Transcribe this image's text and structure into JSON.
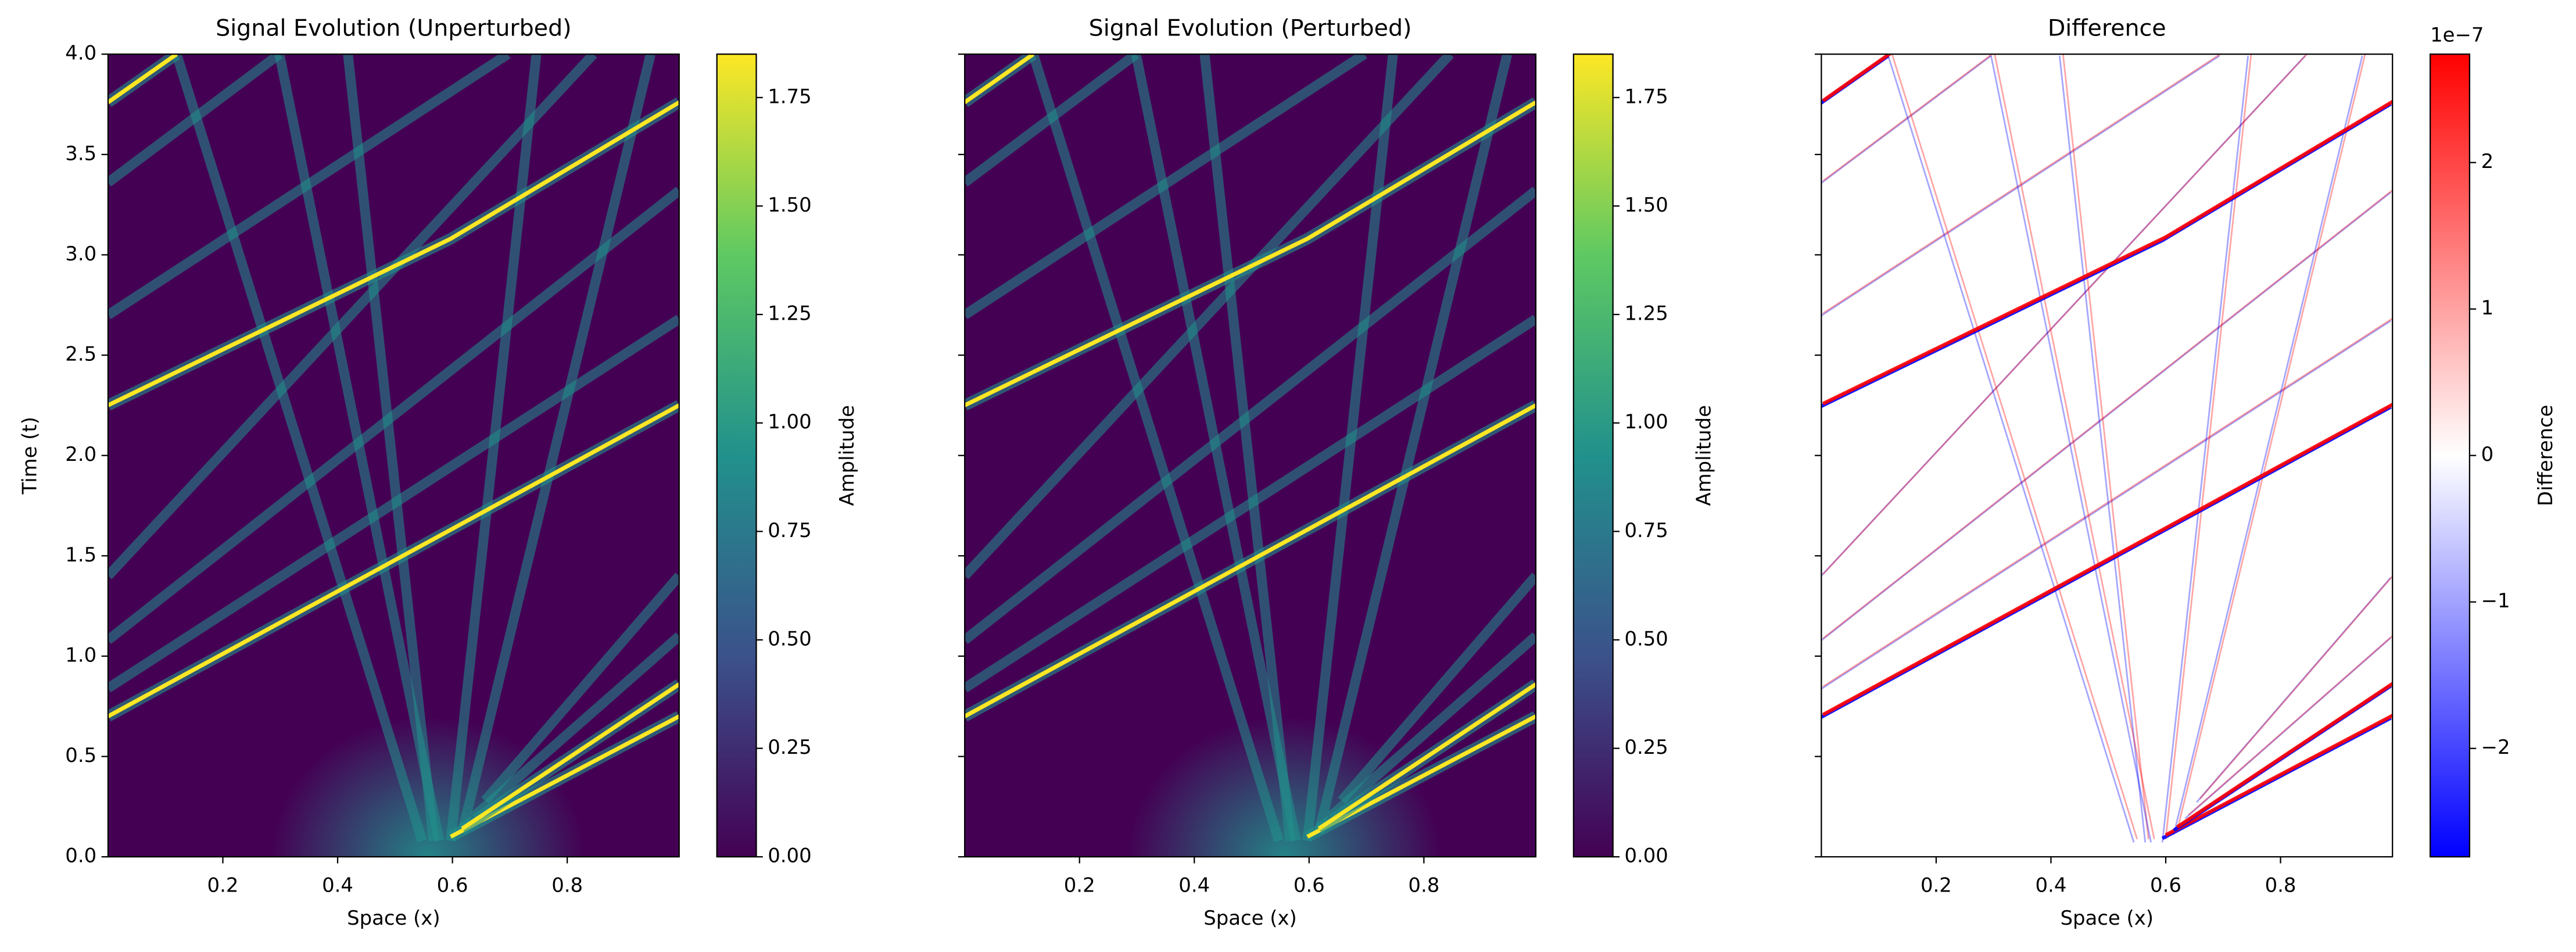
{
  "chart_data": [
    {
      "type": "heatmap",
      "title": "Signal Evolution (Unperturbed)",
      "xlabel": "Space (x)",
      "ylabel": "Time (t)",
      "xlim": [
        0,
        0.995
      ],
      "xticks": [
        0.2,
        0.4,
        0.6,
        0.8
      ],
      "ylim": [
        0,
        4
      ],
      "yticks": [
        {
          "value": 0,
          "label": "0.0"
        },
        0.5,
        {
          "value": 1,
          "label": "1.0"
        },
        1.5,
        {
          "value": 2,
          "label": "2.0"
        },
        2.5,
        {
          "value": 3,
          "label": "3.0"
        },
        3.5,
        {
          "value": 4,
          "label": "4.0"
        }
      ],
      "colorbar": {
        "label": "Amplitude",
        "lim": [
          0,
          1.85
        ],
        "colors": [
          "#440154",
          "#3b528b",
          "#21918c",
          "#5ec962",
          "#fde725"
        ],
        "ticks": [
          {
            "value": 0,
            "label": "0.00"
          },
          {
            "value": 0.25,
            "label": "0.25"
          },
          {
            "value": 0.5,
            "label": "0.50"
          },
          {
            "value": 0.75,
            "label": "0.75"
          },
          {
            "value": 1,
            "label": "1.00"
          },
          {
            "value": 1.25,
            "label": "1.25"
          },
          {
            "value": 1.5,
            "label": "1.50"
          },
          {
            "value": 1.75,
            "label": "1.75"
          }
        ]
      }
    },
    {
      "type": "heatmap",
      "title": "Signal Evolution (Perturbed)",
      "xlabel": "Space (x)",
      "sharey": true,
      "xlim": [
        0,
        0.995
      ],
      "xticks": [
        0.2,
        0.4,
        0.6,
        0.8
      ],
      "ylim": [
        0,
        4
      ],
      "yticks": [
        0,
        0.5,
        1,
        1.5,
        2,
        2.5,
        3,
        3.5,
        4
      ],
      "colorbar": {
        "label": "Amplitude",
        "lim": [
          0,
          1.85
        ],
        "colors": [
          "#440154",
          "#3b528b",
          "#21918c",
          "#5ec962",
          "#fde725"
        ],
        "ticks": [
          {
            "value": 0,
            "label": "0.00"
          },
          {
            "value": 0.25,
            "label": "0.25"
          },
          {
            "value": 0.5,
            "label": "0.50"
          },
          {
            "value": 0.75,
            "label": "0.75"
          },
          {
            "value": 1,
            "label": "1.00"
          },
          {
            "value": 1.25,
            "label": "1.25"
          },
          {
            "value": 1.5,
            "label": "1.50"
          },
          {
            "value": 1.75,
            "label": "1.75"
          }
        ]
      }
    },
    {
      "type": "heatmap",
      "title": "Difference",
      "xlabel": "Space (x)",
      "sharey": true,
      "xlim": [
        0,
        0.995
      ],
      "xticks": [
        0.2,
        0.4,
        0.6,
        0.8
      ],
      "ylim": [
        0,
        4
      ],
      "yticks": [
        0,
        0.5,
        1,
        1.5,
        2,
        2.5,
        3,
        3.5,
        4
      ],
      "colorbar": {
        "label": "Difference",
        "lim": [
          -2.74e-07,
          2.74e-07
        ],
        "colors": [
          "#0000ff",
          "#ffffff",
          "#ff0000"
        ],
        "offset_label": "1e−7",
        "ticks": [
          {
            "value": -2e-07,
            "label": "−2"
          },
          {
            "value": -1e-07,
            "label": "−1"
          },
          {
            "value": 0,
            "label": "0"
          },
          {
            "value": 1e-07,
            "label": "1"
          },
          {
            "value": 2e-07,
            "label": "2"
          }
        ]
      }
    }
  ]
}
